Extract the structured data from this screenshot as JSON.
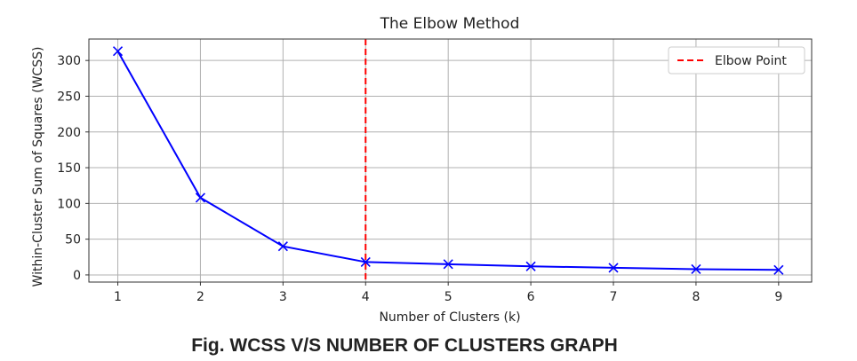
{
  "chart_data": {
    "type": "line",
    "title": "The Elbow Method",
    "xlabel": "Number of Clusters (k)",
    "ylabel": "Within-Cluster Sum of Squares (WCSS)",
    "x": [
      1,
      2,
      3,
      4,
      5,
      6,
      7,
      8,
      9
    ],
    "x_ticks": [
      "1",
      "2",
      "3",
      "4",
      "5",
      "6",
      "7",
      "8",
      "9"
    ],
    "y_ticks": [
      0,
      50,
      100,
      150,
      200,
      250,
      300
    ],
    "xlim": [
      0.65,
      9.4
    ],
    "ylim": [
      -10,
      330
    ],
    "grid": true,
    "series": [
      {
        "values": [
          313,
          108,
          40,
          18,
          15,
          12,
          10,
          8,
          7
        ],
        "color": "#0000ff",
        "marker": "x"
      }
    ],
    "reference_lines": [
      {
        "axis": "x",
        "value": 4,
        "label": "Elbow Point",
        "color": "#ff0000",
        "style": "dashed"
      }
    ],
    "legend": {
      "placement": "top-right",
      "entries": [
        "Elbow Point"
      ]
    }
  },
  "caption": "Fig. WCSS V/S NUMBER OF CLUSTERS GRAPH"
}
